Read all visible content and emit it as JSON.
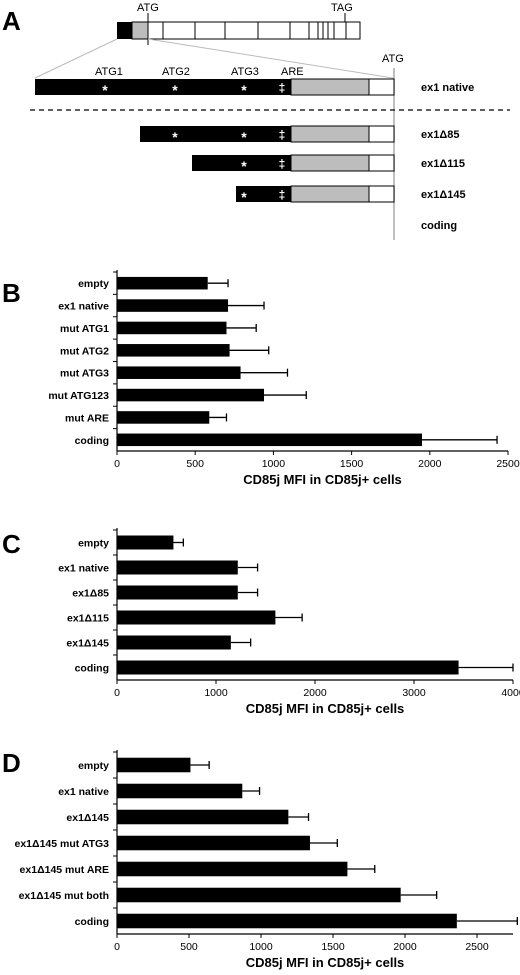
{
  "panel_a": {
    "letter": "A",
    "gene_atg": "ATG",
    "gene_tag": "TAG",
    "atg1": "ATG1",
    "atg2": "ATG2",
    "atg3": "ATG3",
    "are": "ARE",
    "coding_atg": "ATG",
    "star": "*",
    "dagger": "‡",
    "constructs": [
      {
        "label": "ex1 native"
      },
      {
        "label": "ex1Δ85"
      },
      {
        "label": "ex1Δ115"
      },
      {
        "label": "ex1Δ145"
      },
      {
        "label": "coding"
      }
    ]
  },
  "chart_data": [
    {
      "panel": "B",
      "type": "bar",
      "orientation": "horizontal",
      "categories": [
        "empty",
        "ex1 native",
        "mut ATG1",
        "mut ATG2",
        "mut ATG3",
        "mut ATG123",
        "mut ARE",
        "coding"
      ],
      "values": [
        580,
        710,
        700,
        720,
        790,
        940,
        590,
        1950
      ],
      "errors": [
        130,
        230,
        190,
        250,
        300,
        270,
        110,
        480
      ],
      "xlabel": "CD85j MFI in CD85j+ cells",
      "xlim": [
        0,
        2500
      ],
      "ticks": [
        0,
        500,
        1000,
        1500,
        2000,
        2500
      ],
      "color": "#000000"
    },
    {
      "panel": "C",
      "type": "bar",
      "orientation": "horizontal",
      "categories": [
        "empty",
        "ex1 native",
        "ex1Δ85",
        "ex1Δ115",
        "ex1Δ145",
        "coding"
      ],
      "values": [
        570,
        1220,
        1220,
        1600,
        1150,
        3450
      ],
      "errors": [
        100,
        200,
        200,
        270,
        200,
        550
      ],
      "xlabel": "CD85j MFI in CD85j+ cells",
      "xlim": [
        0,
        4000
      ],
      "ticks": [
        0,
        1000,
        2000,
        3000,
        4000
      ],
      "color": "#000000"
    },
    {
      "panel": "D",
      "type": "bar",
      "orientation": "horizontal",
      "categories": [
        "empty",
        "ex1 native",
        "ex1Δ145",
        "ex1Δ145 mut ATG3",
        "ex1Δ145 mut ARE",
        "ex1Δ145 mut both",
        "coding"
      ],
      "values": [
        510,
        870,
        1190,
        1340,
        1600,
        1970,
        2360
      ],
      "errors": [
        130,
        120,
        140,
        190,
        190,
        250,
        420
      ],
      "xlabel": "CD85j MFI in CD85j+ cells",
      "xlim": [
        0,
        2750
      ],
      "ticks": [
        0,
        500,
        1000,
        1500,
        2000,
        2500
      ],
      "color": "#000000"
    }
  ]
}
